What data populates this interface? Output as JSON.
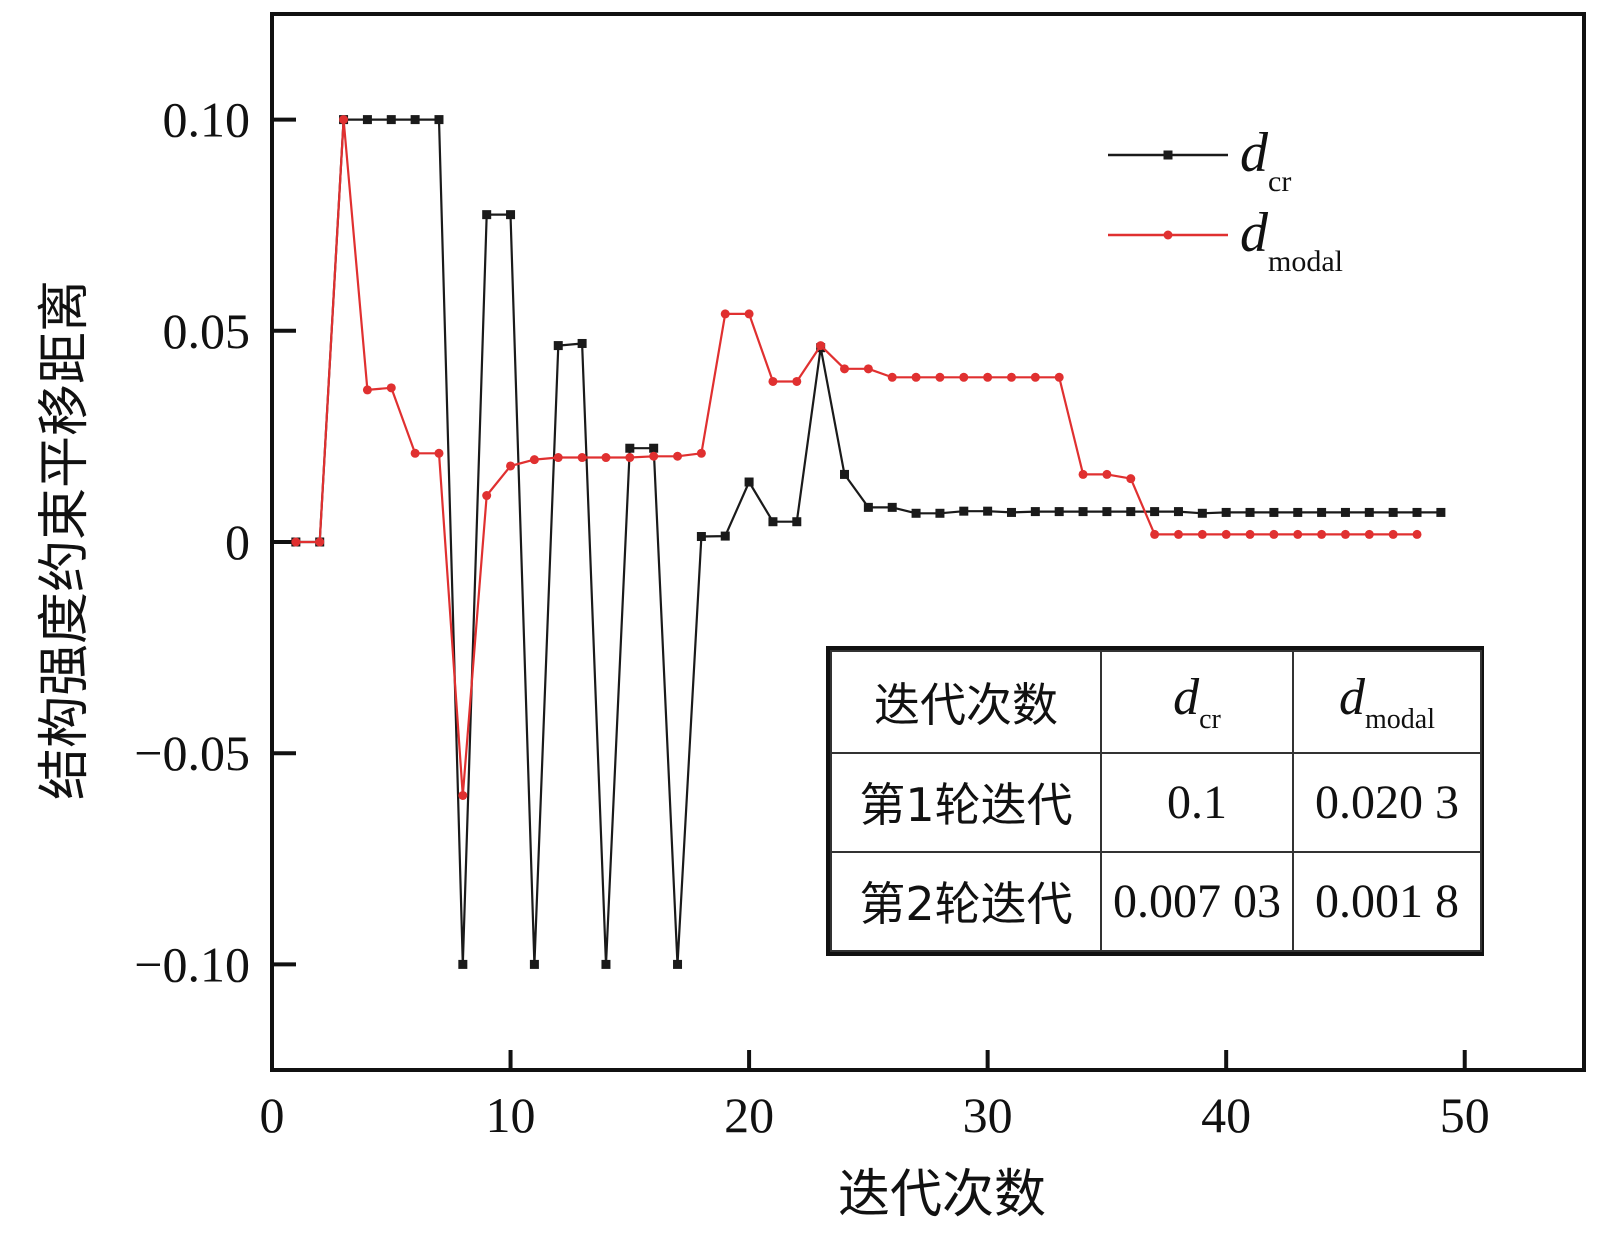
{
  "chart_data": {
    "type": "line",
    "title": "",
    "xlabel": "迭代次数",
    "ylabel": "结构强度约束平移距离",
    "xlim": [
      0,
      55
    ],
    "ylim": [
      -0.125,
      0.125
    ],
    "xticks": [
      0,
      10,
      20,
      30,
      40,
      50
    ],
    "xtick_labels": [
      "0",
      "10",
      "20",
      "30",
      "40",
      "50"
    ],
    "yticks": [
      0.1,
      0.05,
      0,
      -0.05,
      -0.1
    ],
    "ytick_labels": [
      "0.10",
      "0.05",
      "0",
      "−0.05",
      "−0.10"
    ],
    "grid": false,
    "legend_position": "top-right",
    "series": [
      {
        "legend_main": "d",
        "legend_sub": "cr",
        "color": "#1a1a1a",
        "marker": "square",
        "x": [
          1,
          2,
          3,
          4,
          5,
          6,
          7,
          8,
          9,
          10,
          11,
          12,
          13,
          14,
          15,
          16,
          17,
          18,
          19,
          20,
          21,
          22,
          23,
          24,
          25,
          26,
          27,
          28,
          29,
          30,
          31,
          32,
          33,
          34,
          35,
          36,
          37,
          38,
          39,
          40,
          41,
          42,
          43,
          44,
          45,
          46,
          47,
          48,
          49
        ],
        "y": [
          0,
          0,
          0.1,
          0.1,
          0.1,
          0.1,
          0.1,
          -0.1,
          0.0775,
          0.0775,
          -0.1,
          0.0465,
          0.047,
          -0.1,
          0.0222,
          0.0222,
          -0.1,
          0.0013,
          0.0014,
          0.0142,
          0.0048,
          0.0048,
          0.046,
          0.016,
          0.0082,
          0.0082,
          0.0068,
          0.0068,
          0.0073,
          0.0073,
          0.007,
          0.0072,
          0.0072,
          0.0072,
          0.0072,
          0.0072,
          0.0072,
          0.0072,
          0.0068,
          0.007,
          0.007,
          0.007,
          0.007,
          0.007,
          0.007,
          0.007,
          0.007,
          0.007,
          0.007
        ]
      },
      {
        "legend_main": "d",
        "legend_sub": "modal",
        "color": "#e03030",
        "marker": "circle",
        "x": [
          1,
          2,
          3,
          4,
          5,
          6,
          7,
          8,
          9,
          10,
          11,
          12,
          13,
          14,
          15,
          16,
          17,
          18,
          19,
          20,
          21,
          22,
          23,
          24,
          25,
          26,
          27,
          28,
          29,
          30,
          31,
          32,
          33,
          34,
          35,
          36,
          37,
          38,
          39,
          40,
          41,
          42,
          43,
          44,
          45,
          46,
          47,
          48
        ],
        "y": [
          0,
          0,
          0.1,
          0.036,
          0.0365,
          0.021,
          0.021,
          -0.06,
          0.011,
          0.018,
          0.0195,
          0.02,
          0.02,
          0.02,
          0.02,
          0.0203,
          0.0203,
          0.021,
          0.054,
          0.054,
          0.038,
          0.038,
          0.0465,
          0.041,
          0.041,
          0.039,
          0.039,
          0.039,
          0.039,
          0.039,
          0.039,
          0.039,
          0.039,
          0.016,
          0.016,
          0.015,
          0.0018,
          0.0018,
          0.0018,
          0.0018,
          0.0018,
          0.0018,
          0.0018,
          0.0018,
          0.0018,
          0.0018,
          0.0018,
          0.0018
        ]
      }
    ]
  },
  "inset_table": {
    "header": {
      "col1": "迭代次数",
      "col2_main": "d",
      "col2_sub": "cr",
      "col3_main": "d",
      "col3_sub": "modal"
    },
    "rows": [
      {
        "label": "第1轮迭代",
        "dcr": "0.1",
        "dmodal": "0.020 3"
      },
      {
        "label": "第2轮迭代",
        "dcr": "0.007 03",
        "dmodal": "0.001 8"
      }
    ]
  }
}
